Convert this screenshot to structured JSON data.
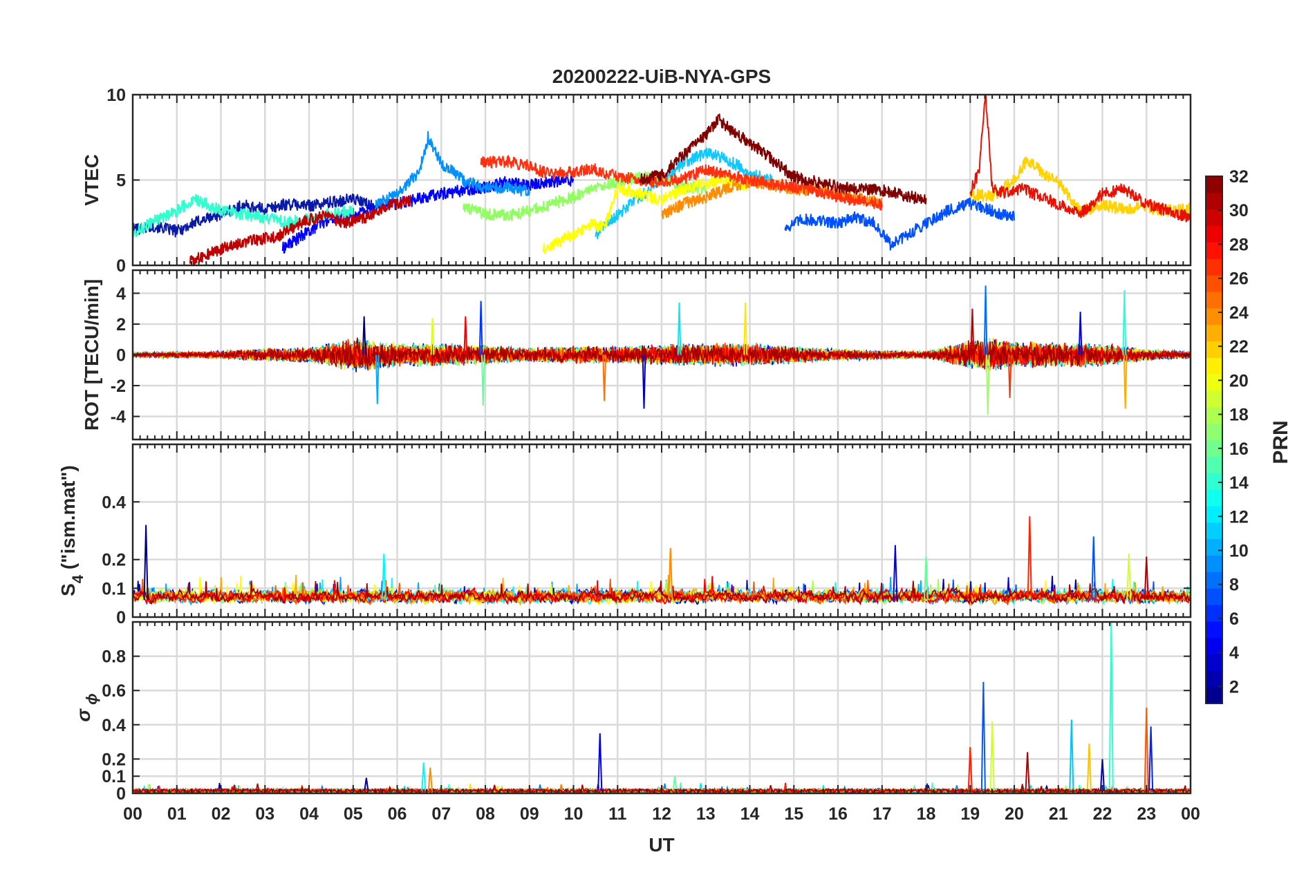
{
  "figure": {
    "title": "20200222-UiB-NYA-GPS",
    "xlabel": "UT",
    "colorbar_label": "PRN"
  },
  "chart_data": [
    {
      "type": "line",
      "panel": "vtec",
      "ylabel": "VTEC",
      "ylim": [
        0,
        10
      ],
      "yticks": [
        "0",
        "5",
        "10"
      ],
      "grid": true,
      "series": [
        {
          "prn": 2,
          "color": "#0a1aa8",
          "x": [
            0,
            0.5,
            1,
            1.5,
            2,
            2.5,
            3,
            3.5,
            4,
            4.5,
            5,
            5.5
          ],
          "values": [
            2.1,
            2.3,
            2.0,
            2.6,
            3.0,
            3.5,
            3.3,
            3.6,
            3.5,
            3.7,
            3.9,
            3.4
          ]
        },
        {
          "prn": 4,
          "color": "#0000ff",
          "x": [
            3.4,
            4,
            4.5,
            5,
            5.5,
            6,
            6.5,
            7,
            7.5,
            8,
            8.5,
            9,
            9.5,
            10
          ],
          "values": [
            1.0,
            2.0,
            2.8,
            3.0,
            3.4,
            3.6,
            3.9,
            4.2,
            4.4,
            4.6,
            4.9,
            4.7,
            4.9,
            5.0
          ]
        },
        {
          "prn": 6,
          "color": "#0050ff",
          "x": [
            14.8,
            15.2,
            15.6,
            16,
            16.4,
            16.8,
            17.2,
            17.6,
            18,
            18.5,
            19,
            19.5,
            20
          ],
          "values": [
            2.2,
            2.7,
            2.6,
            2.5,
            2.8,
            2.5,
            1.2,
            1.8,
            2.5,
            3.2,
            3.6,
            3.2,
            2.8
          ]
        },
        {
          "prn": 8,
          "color": "#0090ff",
          "x": [
            5.5,
            6,
            6.5,
            6.7,
            7,
            7.5,
            8,
            8.5,
            9
          ],
          "values": [
            3.5,
            4.2,
            5.5,
            7.5,
            6.0,
            5.0,
            4.5,
            4.6,
            4.3
          ]
        },
        {
          "prn": 11,
          "color": "#10c8ff",
          "x": [
            10.5,
            11,
            11.5,
            12,
            12.5,
            13,
            13.5,
            14,
            14.5
          ],
          "values": [
            1.8,
            3.0,
            4.0,
            5.0,
            6.0,
            6.6,
            6.2,
            5.4,
            5.0
          ]
        },
        {
          "prn": 14,
          "color": "#30ffd0",
          "x": [
            0,
            0.5,
            1,
            1.4,
            2,
            2.5,
            3,
            3.5,
            4,
            4.5,
            5
          ],
          "values": [
            1.9,
            2.6,
            3.2,
            3.9,
            3.2,
            3.0,
            2.8,
            2.5,
            2.7,
            3.0,
            3.2
          ]
        },
        {
          "prn": 17,
          "color": "#90ff60",
          "x": [
            7.5,
            8,
            8.5,
            9,
            9.5,
            10,
            10.5,
            11,
            11.5,
            12,
            12.5,
            13
          ],
          "values": [
            3.4,
            3.0,
            2.9,
            3.2,
            3.6,
            4.0,
            4.5,
            4.9,
            5.2,
            5.0,
            4.6,
            4.5
          ]
        },
        {
          "prn": 20,
          "color": "#ffff00",
          "x": [
            9.3,
            9.6,
            10,
            10.4,
            10.7,
            11,
            11.5,
            12,
            12.5,
            13,
            13.5,
            14
          ],
          "values": [
            1.0,
            1.3,
            1.8,
            2.4,
            2.2,
            4.5,
            4.2,
            3.8,
            4.5,
            4.8,
            5.0,
            4.6
          ]
        },
        {
          "prn": 21,
          "color": "#ffd200",
          "x": [
            19,
            19.5,
            20,
            20.3,
            20.6,
            21,
            21.5,
            22,
            22.5,
            23,
            23.5,
            24
          ],
          "values": [
            4.2,
            4.0,
            5.0,
            6.2,
            5.5,
            4.8,
            3.2,
            3.5,
            3.3,
            3.4,
            3.2,
            3.3
          ]
        },
        {
          "prn": 24,
          "color": "#ff8c00",
          "x": [
            12,
            12.5,
            13,
            13.5,
            14,
            14.5,
            15,
            15.5,
            16,
            16.5,
            17
          ],
          "values": [
            3.0,
            3.6,
            4.0,
            4.5,
            4.9,
            4.7,
            4.5,
            4.4,
            4.2,
            3.9,
            3.7
          ]
        },
        {
          "prn": 27,
          "color": "#ff3010",
          "x": [
            7.9,
            8.5,
            9,
            9.5,
            10,
            10.5,
            11,
            11.5,
            12,
            12.5,
            13,
            13.5,
            14,
            14.5,
            15,
            15.5,
            16,
            16.5,
            17
          ],
          "values": [
            6.0,
            6.1,
            5.8,
            5.3,
            5.5,
            5.6,
            5.2,
            5.0,
            4.9,
            5.1,
            5.6,
            5.3,
            5.0,
            4.8,
            4.6,
            4.4,
            4.0,
            3.8,
            3.5
          ]
        },
        {
          "prn": 28,
          "color": "#e81000",
          "x": [
            19,
            19.2,
            19.35,
            19.5,
            19.8,
            20.2,
            20.6,
            21,
            21.5,
            22,
            22.5,
            23,
            23.5,
            24
          ],
          "values": [
            4.3,
            5.5,
            10.0,
            4.6,
            4.2,
            4.5,
            4.0,
            3.6,
            3.0,
            4.2,
            4.5,
            3.6,
            3.2,
            2.8
          ]
        },
        {
          "prn": 30,
          "color": "#c00000",
          "x": [
            1.3,
            1.8,
            2.3,
            2.8,
            3.3,
            3.8,
            4.3,
            4.8,
            5.3,
            5.8,
            6.3
          ],
          "values": [
            0.2,
            0.8,
            1.2,
            1.5,
            1.7,
            2.5,
            2.9,
            2.5,
            2.8,
            3.5,
            3.8
          ]
        },
        {
          "prn": 32,
          "color": "#800000",
          "x": [
            11.5,
            12,
            12.5,
            13,
            13.3,
            13.6,
            14,
            14.5,
            15,
            15.5,
            16,
            16.5,
            17,
            17.5,
            18
          ],
          "values": [
            5.0,
            5.3,
            6.5,
            7.6,
            8.6,
            7.8,
            7.2,
            6.2,
            5.2,
            4.9,
            4.6,
            4.5,
            4.4,
            4.1,
            3.8
          ]
        }
      ]
    },
    {
      "type": "line",
      "panel": "rot",
      "ylabel": "ROT [TECU/min]",
      "ylim": [
        -5.5,
        5.5
      ],
      "yticks": [
        "-4",
        "-2",
        "0",
        "2",
        "4"
      ],
      "grid": true,
      "noise_profile": {
        "x": [
          0,
          1,
          2,
          3,
          4,
          5,
          5.5,
          6,
          7,
          8,
          9,
          10,
          11,
          12,
          13,
          14,
          15,
          16,
          17,
          18,
          19,
          19.5,
          20,
          21,
          22,
          23,
          24
        ],
        "amplitude": [
          0.15,
          0.2,
          0.25,
          0.45,
          0.5,
          1.2,
          1.0,
          0.8,
          0.8,
          0.7,
          0.5,
          0.6,
          0.6,
          0.7,
          0.8,
          0.8,
          0.6,
          0.4,
          0.3,
          0.25,
          1.0,
          1.2,
          0.9,
          0.9,
          0.8,
          0.4,
          0.25
        ]
      },
      "spikes": [
        {
          "x": 5.25,
          "value": 2.5
        },
        {
          "x": 5.55,
          "value": -3.2
        },
        {
          "x": 6.8,
          "value": 2.4
        },
        {
          "x": 7.55,
          "value": 2.5
        },
        {
          "x": 7.9,
          "value": 3.5
        },
        {
          "x": 7.95,
          "value": -3.3
        },
        {
          "x": 10.7,
          "value": -3.0
        },
        {
          "x": 11.6,
          "value": -3.5
        },
        {
          "x": 12.4,
          "value": 3.4
        },
        {
          "x": 13.9,
          "value": 3.4
        },
        {
          "x": 19.05,
          "value": 3.0
        },
        {
          "x": 19.35,
          "value": 4.5
        },
        {
          "x": 19.4,
          "value": -3.9
        },
        {
          "x": 19.9,
          "value": -2.8
        },
        {
          "x": 21.5,
          "value": 2.8
        },
        {
          "x": 22.5,
          "value": 4.2
        },
        {
          "x": 22.52,
          "value": -3.5
        }
      ]
    },
    {
      "type": "line",
      "panel": "s4",
      "ylabel": "S4 (\"ism.mat\")",
      "ylabel_parts": [
        "S",
        "4",
        " (\"ism.mat\")"
      ],
      "ylim": [
        0,
        0.6
      ],
      "yticks": [
        "0",
        "0.1",
        "0.2",
        "0.4"
      ],
      "grid": true,
      "baseline": 0.06,
      "spikes": [
        {
          "x": 0.3,
          "value": 0.32
        },
        {
          "x": 5.7,
          "value": 0.22
        },
        {
          "x": 12.2,
          "value": 0.24
        },
        {
          "x": 17.3,
          "value": 0.25
        },
        {
          "x": 18.0,
          "value": 0.21
        },
        {
          "x": 20.35,
          "value": 0.35
        },
        {
          "x": 21.8,
          "value": 0.28
        },
        {
          "x": 22.6,
          "value": 0.22
        },
        {
          "x": 23.0,
          "value": 0.21
        }
      ]
    },
    {
      "type": "line",
      "panel": "sigma_phi",
      "ylabel": "σ ϕ",
      "ylabel_parts": [
        "σ",
        "ϕ"
      ],
      "ylim": [
        0,
        1.0
      ],
      "yticks": [
        "0",
        "0.1",
        "0.2",
        "0.4",
        "0.6",
        "0.8"
      ],
      "grid": true,
      "baseline": 0.015,
      "spikes": [
        {
          "x": 5.3,
          "value": 0.09
        },
        {
          "x": 6.6,
          "value": 0.18
        },
        {
          "x": 6.75,
          "value": 0.15
        },
        {
          "x": 10.6,
          "value": 0.35
        },
        {
          "x": 12.3,
          "value": 0.1
        },
        {
          "x": 19.0,
          "value": 0.27
        },
        {
          "x": 19.3,
          "value": 0.65
        },
        {
          "x": 19.5,
          "value": 0.42
        },
        {
          "x": 20.3,
          "value": 0.24
        },
        {
          "x": 21.3,
          "value": 0.43
        },
        {
          "x": 21.7,
          "value": 0.29
        },
        {
          "x": 22.0,
          "value": 0.2
        },
        {
          "x": 22.2,
          "value": 1.0
        },
        {
          "x": 23.0,
          "value": 0.5
        },
        {
          "x": 23.1,
          "value": 0.39
        }
      ]
    }
  ],
  "xaxis": {
    "xlim": [
      0,
      24
    ],
    "tick_labels": [
      "00",
      "01",
      "02",
      "03",
      "04",
      "05",
      "06",
      "07",
      "08",
      "09",
      "10",
      "11",
      "12",
      "13",
      "14",
      "15",
      "16",
      "17",
      "18",
      "19",
      "20",
      "21",
      "22",
      "23",
      "00"
    ]
  },
  "colorbar": {
    "range": [
      1,
      32
    ],
    "tick_labels": [
      "2",
      "4",
      "6",
      "8",
      "10",
      "12",
      "14",
      "16",
      "18",
      "20",
      "22",
      "24",
      "26",
      "28",
      "30",
      "32"
    ],
    "colormap": "jet"
  }
}
